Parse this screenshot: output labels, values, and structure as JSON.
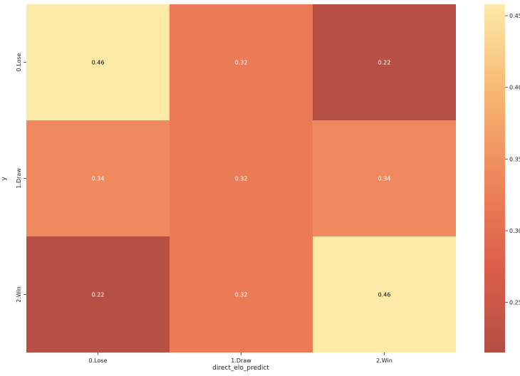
{
  "chart_data": {
    "type": "heatmap",
    "title": "",
    "xlabel": "direct_elo_predict",
    "ylabel": "y",
    "x_categories": [
      "0.Lose",
      "1.Draw",
      "2.Win"
    ],
    "y_categories": [
      "0.Lose",
      "1.Draw",
      "2.Win"
    ],
    "values": [
      [
        0.46,
        0.32,
        0.22
      ],
      [
        0.34,
        0.32,
        0.34
      ],
      [
        0.22,
        0.32,
        0.46
      ]
    ],
    "value_labels": [
      [
        "0.46",
        "0.32",
        "0.22"
      ],
      [
        "0.34",
        "0.32",
        "0.34"
      ],
      [
        "0.22",
        "0.32",
        "0.46"
      ]
    ],
    "colorbar": {
      "min": 0.215,
      "max": 0.458,
      "ticks": [
        0.25,
        0.3,
        0.35,
        0.4,
        0.45
      ],
      "tick_labels": [
        "0.25",
        "0.30",
        "0.35",
        "0.40",
        "0.45"
      ]
    },
    "colormap": "YlOrRd_r",
    "colormap_stops": [
      "#a63023",
      "#d84229",
      "#ec713f",
      "#f5ab5b",
      "#fde699"
    ],
    "cell_alpha": 0.85
  }
}
